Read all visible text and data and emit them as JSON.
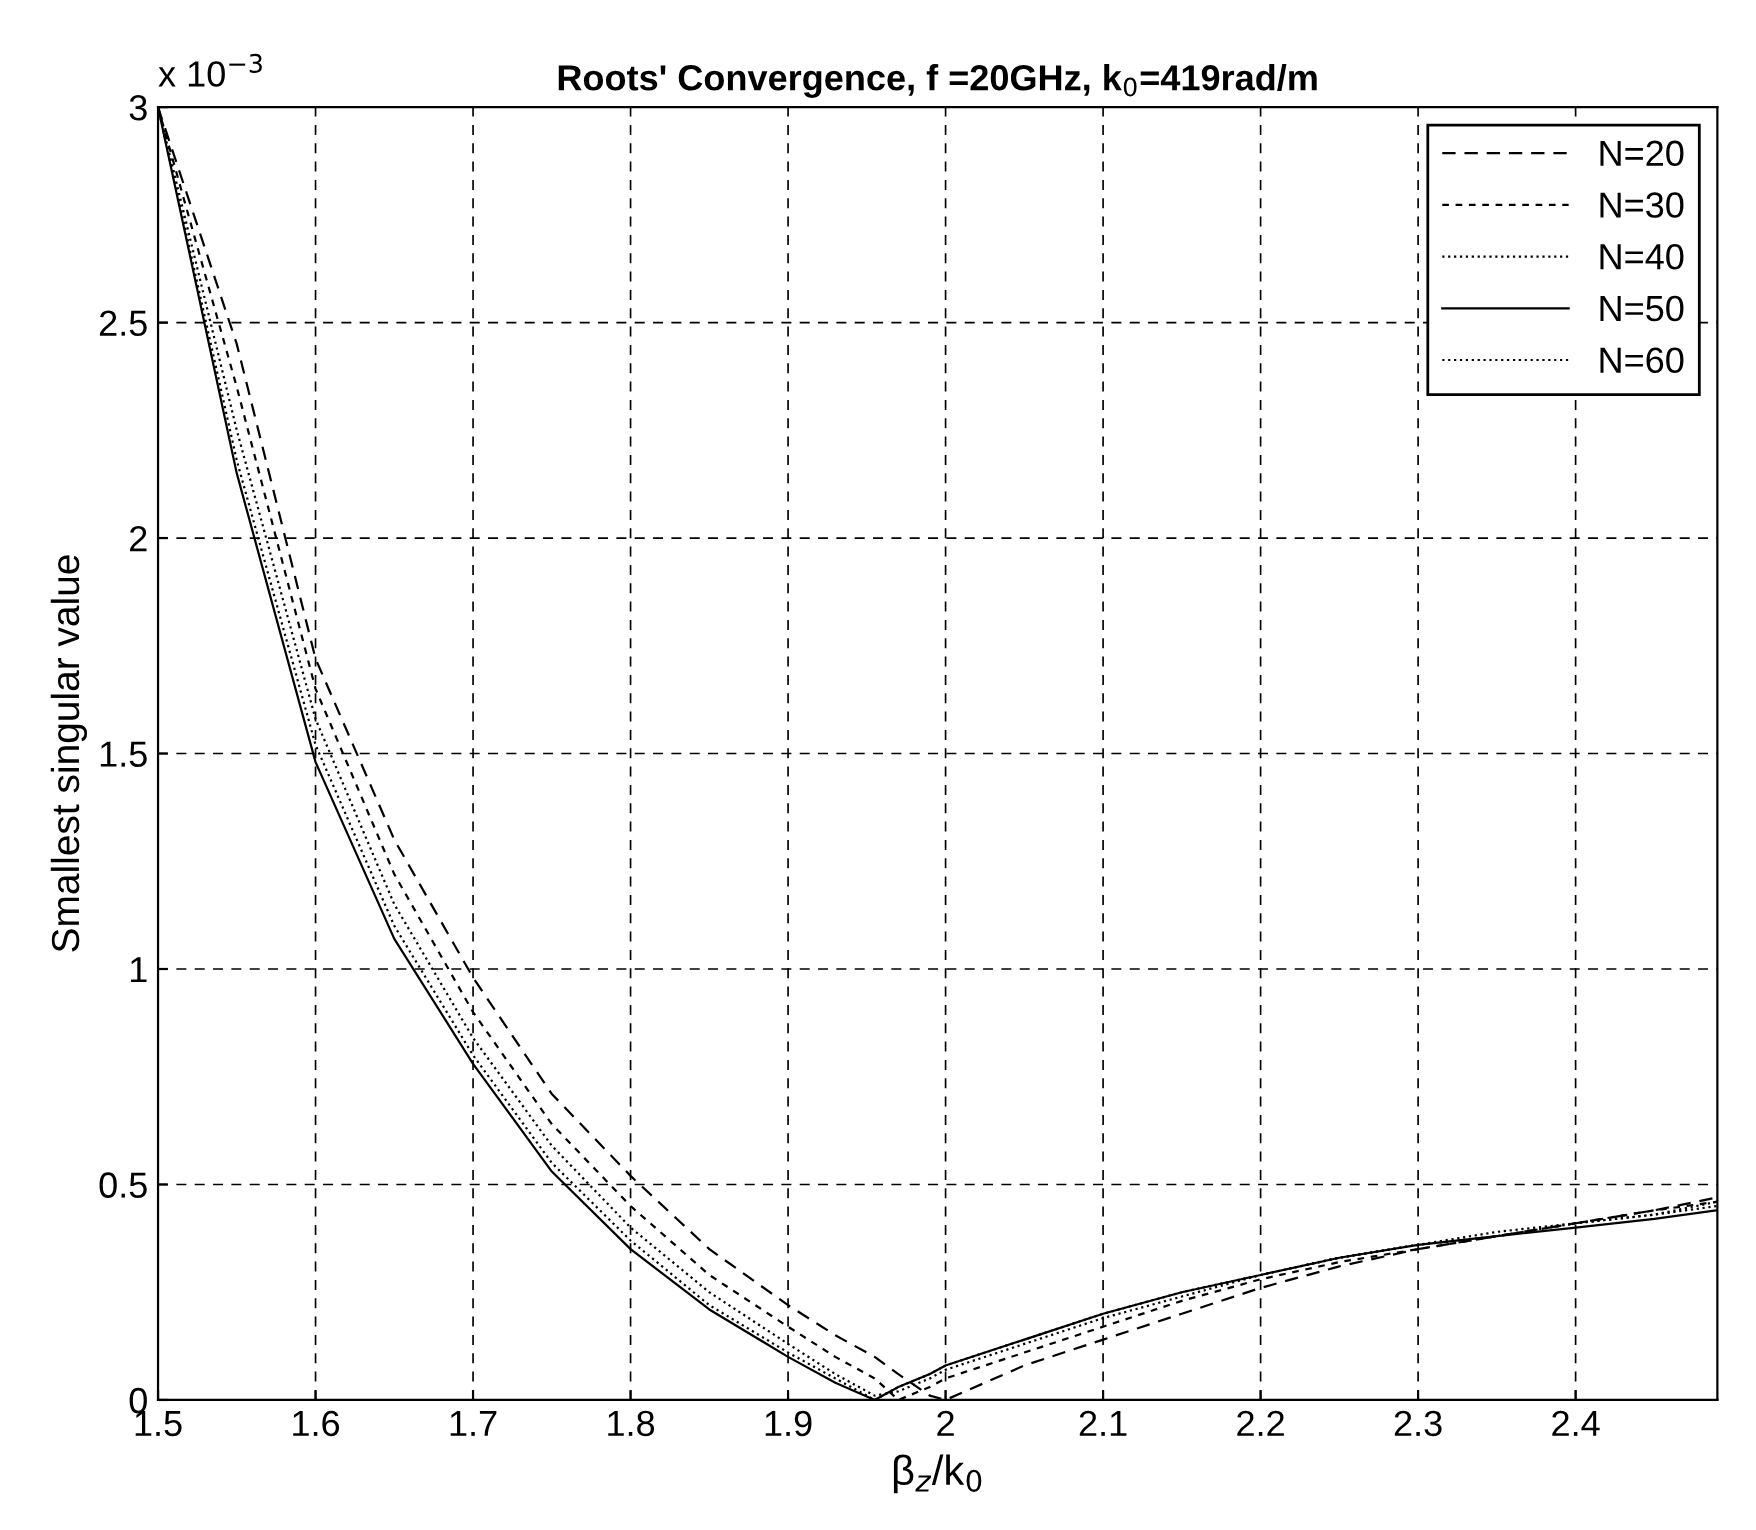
{
  "chart_data": {
    "type": "line",
    "title": "Roots' Convergence, f =20GHz, k$_{0}$=419rad/m",
    "xlabel": "β$_{z}$/k$_{0}$",
    "ylabel": "Smallest singular value",
    "annotations": [
      "x 10$^{−3}$"
    ],
    "x": [
      1.5,
      1.55,
      1.6,
      1.65,
      1.7,
      1.75,
      1.8,
      1.85,
      1.9,
      1.93,
      1.955,
      1.97,
      1.99,
      2.0,
      2.05,
      2.1,
      2.15,
      2.2,
      2.25,
      2.3,
      2.35,
      2.4,
      2.45,
      2.49
    ],
    "series": [
      {
        "name": "N=20",
        "color": "#000000",
        "line_style": "dashed",
        "values": [
          3.0,
          2.45,
          1.72,
          1.3,
          0.98,
          0.71,
          0.52,
          0.35,
          0.22,
          0.15,
          0.1,
          0.06,
          0.01,
          0.0,
          0.08,
          0.14,
          0.2,
          0.26,
          0.31,
          0.35,
          0.38,
          0.41,
          0.44,
          0.47
        ]
      },
      {
        "name": "N=30",
        "color": "#000000",
        "line_style": "dashed",
        "values": [
          3.0,
          2.35,
          1.65,
          1.22,
          0.9,
          0.64,
          0.45,
          0.29,
          0.17,
          0.1,
          0.05,
          0.0,
          0.03,
          0.05,
          0.11,
          0.17,
          0.23,
          0.28,
          0.32,
          0.35,
          0.38,
          0.41,
          0.44,
          0.46
        ]
      },
      {
        "name": "N=40",
        "color": "#000000",
        "line_style": "dotted",
        "values": [
          3.0,
          2.25,
          1.58,
          1.15,
          0.84,
          0.59,
          0.4,
          0.25,
          0.13,
          0.06,
          0.01,
          0.02,
          0.05,
          0.07,
          0.13,
          0.19,
          0.24,
          0.29,
          0.33,
          0.36,
          0.39,
          0.41,
          0.43,
          0.46
        ]
      },
      {
        "name": "N=50",
        "color": "#000000",
        "line_style": "solid",
        "values": [
          3.0,
          2.15,
          1.48,
          1.07,
          0.78,
          0.53,
          0.35,
          0.21,
          0.1,
          0.04,
          0.0,
          0.03,
          0.06,
          0.08,
          0.14,
          0.2,
          0.25,
          0.29,
          0.33,
          0.36,
          0.38,
          0.4,
          0.42,
          0.44
        ]
      },
      {
        "name": "N=60",
        "color": "#000000",
        "line_style": "dotted",
        "values": [
          3.0,
          2.18,
          1.52,
          1.1,
          0.8,
          0.55,
          0.37,
          0.22,
          0.11,
          0.05,
          0.0,
          0.03,
          0.06,
          0.08,
          0.14,
          0.2,
          0.25,
          0.29,
          0.33,
          0.36,
          0.38,
          0.41,
          0.43,
          0.45
        ]
      }
    ],
    "xlim": [
      1.5,
      2.49
    ],
    "xticks": [
      1.5,
      1.6,
      1.7,
      1.8,
      1.9,
      2,
      2.1,
      2.2,
      2.3,
      2.4
    ],
    "ylim": [
      0,
      3
    ],
    "yticks": [
      0,
      0.5,
      1,
      1.5,
      2,
      2.5,
      3
    ],
    "grid": true,
    "legend": "top right"
  }
}
